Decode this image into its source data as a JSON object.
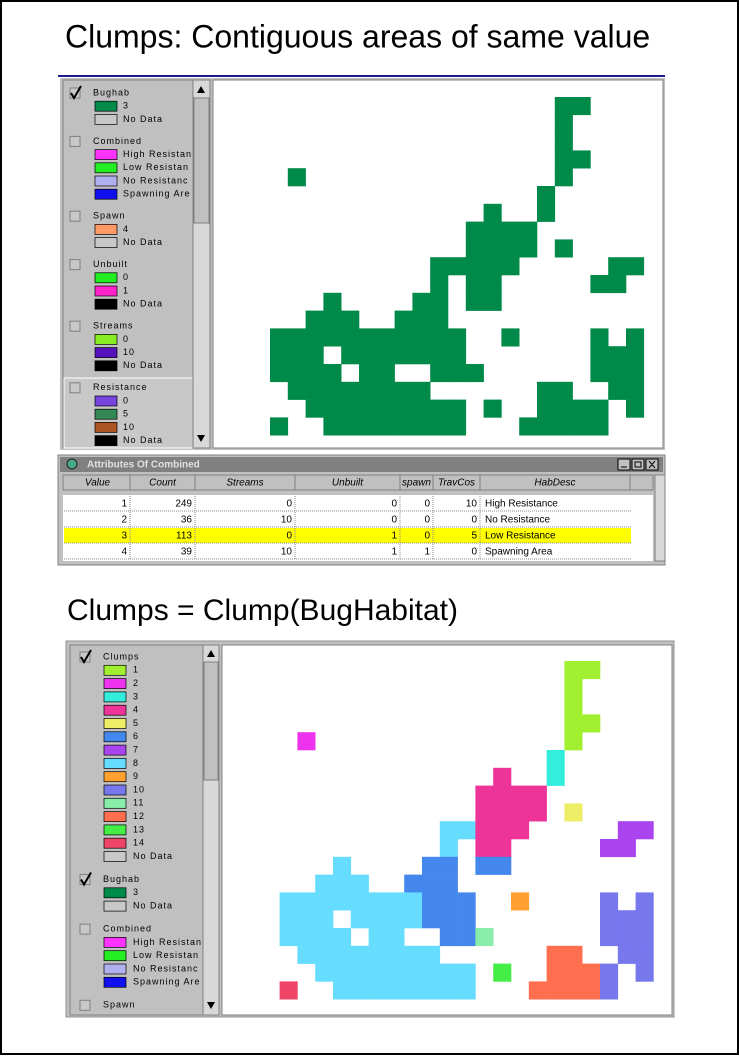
{
  "header": {
    "title": "Clumps: Contiguous areas of same value"
  },
  "top_legend": {
    "layers": [
      {
        "name": "Bughab",
        "checked": true,
        "items": [
          {
            "label": "3",
            "color": "#008a4a"
          },
          {
            "label": "No Data",
            "color": "#c8c8c8"
          }
        ]
      },
      {
        "name": "Combined",
        "checked": false,
        "items": [
          {
            "label": "High Resistan",
            "color": "#ff33ff"
          },
          {
            "label": "Low Resistan",
            "color": "#22ee22"
          },
          {
            "label": "No Resistanc",
            "color": "#b0b0ee"
          },
          {
            "label": "Spawning Are",
            "color": "#1010ee"
          }
        ]
      },
      {
        "name": "Spawn",
        "checked": false,
        "items": [
          {
            "label": "4",
            "color": "#ff9966"
          },
          {
            "label": "No Data",
            "color": "#c8c8c8"
          }
        ]
      },
      {
        "name": "Unbuilt",
        "checked": false,
        "items": [
          {
            "label": "0",
            "color": "#22ee22"
          },
          {
            "label": "1",
            "color": "#ff22cc"
          },
          {
            "label": "No Data",
            "color": "#000000"
          }
        ]
      },
      {
        "name": "Streams",
        "checked": false,
        "items": [
          {
            "label": "0",
            "color": "#88ee22"
          },
          {
            "label": "10",
            "color": "#5511bb"
          },
          {
            "label": "No Data",
            "color": "#000000"
          }
        ]
      },
      {
        "name": "Resistance",
        "checked": false,
        "items": [
          {
            "label": "0",
            "color": "#7744dd"
          },
          {
            "label": "5",
            "color": "#338855"
          },
          {
            "label": "10",
            "color": "#aa5522"
          },
          {
            "label": "No Data",
            "color": "#000000"
          }
        ]
      }
    ]
  },
  "attribute_table": {
    "title": "Attributes Of Combined",
    "columns": [
      "Value",
      "Count",
      "Streams",
      "Unbuilt",
      "spawn",
      "TravCos",
      "HabDesc"
    ],
    "rows": [
      [
        1,
        249,
        0,
        0,
        0,
        10,
        "High Resistance"
      ],
      [
        2,
        36,
        10,
        0,
        0,
        0,
        "No Resistance"
      ],
      [
        3,
        113,
        0,
        1,
        0,
        5,
        "Low Resistance"
      ],
      [
        4,
        39,
        10,
        1,
        1,
        0,
        "Spawning Area"
      ]
    ],
    "selected_row": 2
  },
  "section2": {
    "title": "Clumps = Clump(BugHabitat)"
  },
  "bottom_legend": {
    "layers": [
      {
        "name": "Clumps",
        "checked": true,
        "items": [
          {
            "label": "1",
            "color": "#a0f030"
          },
          {
            "label": "2",
            "color": "#ee33ee"
          },
          {
            "label": "3",
            "color": "#33eedd"
          },
          {
            "label": "4",
            "color": "#ee3399"
          },
          {
            "label": "5",
            "color": "#eeee66"
          },
          {
            "label": "6",
            "color": "#4488ee"
          },
          {
            "label": "7",
            "color": "#aa44ee"
          },
          {
            "label": "8",
            "color": "#66ddff"
          },
          {
            "label": "9",
            "color": "#ffa030"
          },
          {
            "label": "10",
            "color": "#7777ee"
          },
          {
            "label": "11",
            "color": "#88eeaa"
          },
          {
            "label": "12",
            "color": "#ff6f4f"
          },
          {
            "label": "13",
            "color": "#44ee44"
          },
          {
            "label": "14",
            "color": "#ee4466"
          },
          {
            "label": "No Data",
            "color": "#c8c8c8"
          }
        ]
      },
      {
        "name": "Bughab",
        "checked": true,
        "items": [
          {
            "label": "3",
            "color": "#008a4a"
          },
          {
            "label": "No Data",
            "color": "#c8c8c8"
          }
        ]
      },
      {
        "name": "Combined",
        "checked": false,
        "items": [
          {
            "label": "High Resistan",
            "color": "#ff33ff"
          },
          {
            "label": "Low Resistan",
            "color": "#22ee22"
          },
          {
            "label": "No Resistanc",
            "color": "#b0b0ee"
          },
          {
            "label": "Spawning Are",
            "color": "#1010ee"
          }
        ]
      },
      {
        "name": "Spawn",
        "checked": false,
        "items": []
      }
    ]
  }
}
